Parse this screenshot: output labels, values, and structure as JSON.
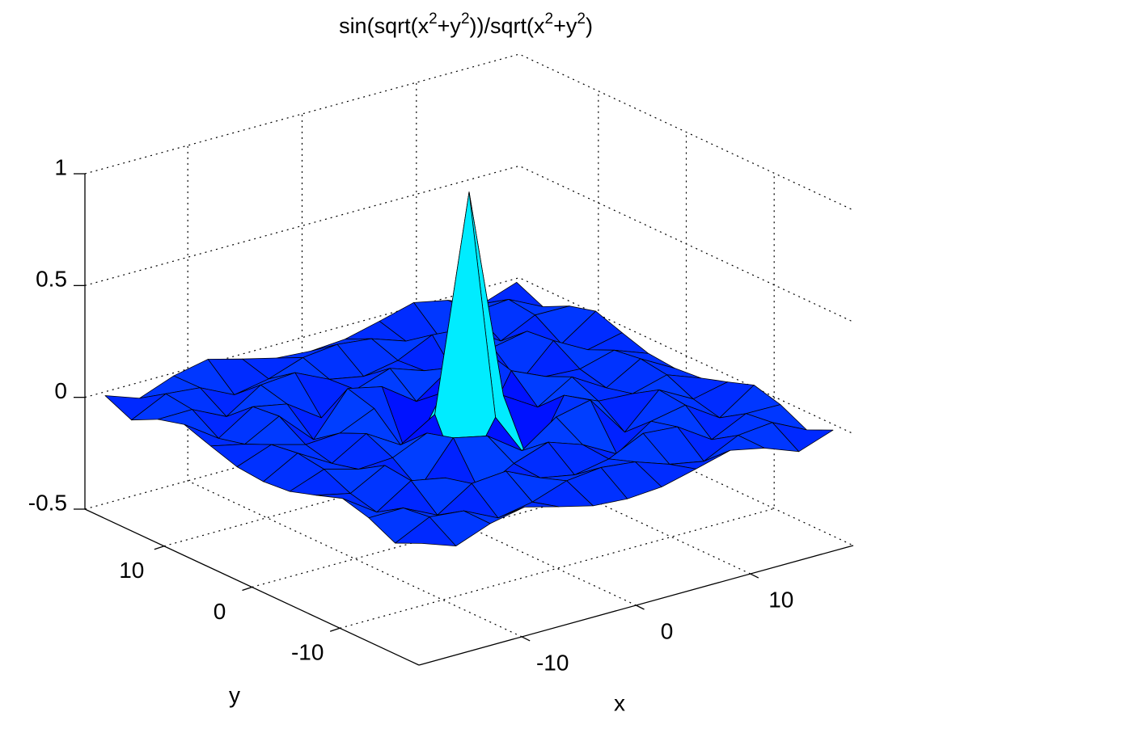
{
  "chart_data": {
    "type": "surface",
    "title": [
      "sin(sqrt(x",
      "2",
      "+y",
      "2",
      "))/sqrt(x",
      "2",
      "+y",
      "2",
      ")"
    ],
    "xlabel": "x",
    "ylabel": "y",
    "x": [
      -18,
      -15,
      -12,
      -9,
      -6,
      -3,
      0,
      3,
      6,
      9,
      12,
      15,
      18
    ],
    "y": [
      -18,
      -15,
      -12,
      -9,
      -6,
      -3,
      0,
      3,
      6,
      9,
      12,
      15,
      18
    ],
    "z": [
      [
        0.012,
        -0.042,
        0.016,
        0.048,
        0.007,
        -0.031,
        -0.042,
        -0.031,
        0.007,
        0.048,
        0.016,
        -0.042,
        0.012
      ],
      [
        -0.042,
        0.033,
        0.018,
        -0.056,
        -0.027,
        0.026,
        0.043,
        0.026,
        -0.027,
        -0.056,
        0.018,
        0.033,
        -0.042
      ],
      [
        0.016,
        0.018,
        -0.056,
        0.043,
        0.056,
        -0.016,
        -0.045,
        -0.016,
        0.056,
        0.043,
        -0.056,
        0.018,
        0.016
      ],
      [
        0.048,
        -0.056,
        0.043,
        0.013,
        -0.091,
        -0.007,
        0.046,
        -0.007,
        -0.091,
        0.013,
        0.043,
        -0.056,
        0.048
      ],
      [
        0.007,
        -0.027,
        0.056,
        -0.091,
        0.095,
        0.061,
        -0.047,
        0.061,
        0.095,
        -0.091,
        0.056,
        -0.027,
        0.007
      ],
      [
        -0.031,
        0.026,
        -0.016,
        -0.007,
        0.061,
        -0.21,
        0.047,
        -0.21,
        0.061,
        -0.007,
        -0.016,
        0.026,
        -0.031
      ],
      [
        -0.042,
        0.043,
        -0.045,
        0.046,
        -0.047,
        0.047,
        1,
        0.047,
        -0.047,
        0.046,
        -0.045,
        0.043,
        -0.042
      ],
      [
        -0.031,
        0.026,
        -0.016,
        -0.007,
        0.061,
        -0.21,
        0.047,
        -0.21,
        0.061,
        -0.007,
        -0.016,
        0.026,
        -0.031
      ],
      [
        0.007,
        -0.027,
        0.056,
        -0.091,
        0.095,
        0.061,
        -0.047,
        0.061,
        0.095,
        -0.091,
        0.056,
        -0.027,
        0.007
      ],
      [
        0.048,
        -0.056,
        0.043,
        0.013,
        -0.091,
        -0.007,
        0.046,
        -0.007,
        -0.091,
        0.013,
        0.043,
        -0.056,
        0.048
      ],
      [
        0.016,
        0.018,
        -0.056,
        0.043,
        0.056,
        -0.016,
        -0.045,
        -0.016,
        0.056,
        0.043,
        -0.056,
        0.018,
        0.016
      ],
      [
        -0.042,
        0.033,
        0.018,
        -0.056,
        -0.027,
        0.026,
        0.043,
        0.026,
        -0.027,
        -0.056,
        0.018,
        0.033,
        -0.042
      ],
      [
        0.012,
        -0.042,
        0.016,
        0.048,
        0.007,
        -0.031,
        -0.042,
        -0.031,
        0.007,
        0.048,
        0.016,
        -0.042,
        0.012
      ]
    ],
    "xlim": [
      -19,
      19
    ],
    "ylim": [
      -19,
      19
    ],
    "zlim": [
      -0.5,
      1
    ],
    "xticks": [
      -10,
      0,
      10
    ],
    "yticks": [
      -10,
      0,
      10
    ],
    "zticks": [
      -0.5,
      0,
      0.5,
      1
    ],
    "grid": true,
    "colormap": "jet",
    "edge_color": "#000000"
  }
}
